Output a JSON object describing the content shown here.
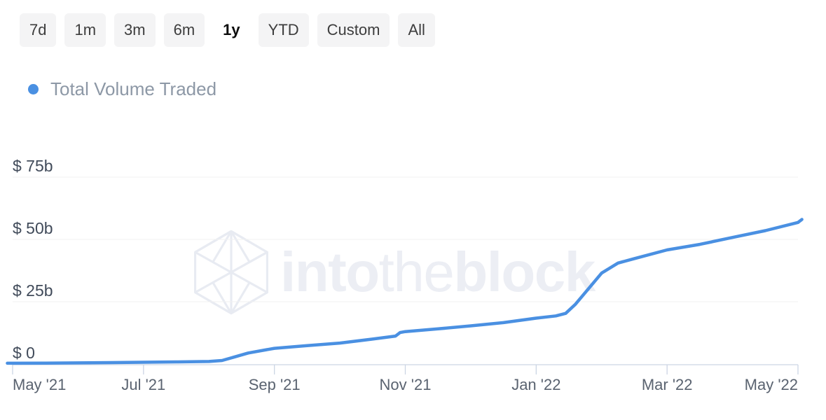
{
  "toolbar": {
    "ranges": [
      {
        "label": "7d",
        "active": false
      },
      {
        "label": "1m",
        "active": false
      },
      {
        "label": "3m",
        "active": false
      },
      {
        "label": "6m",
        "active": false
      },
      {
        "label": "1y",
        "active": true
      },
      {
        "label": "YTD",
        "active": false
      },
      {
        "label": "Custom",
        "active": false
      },
      {
        "label": "All",
        "active": false
      }
    ]
  },
  "legend": {
    "label": "Total Volume Traded",
    "dot_color": "#4a90e2"
  },
  "watermark": {
    "into": "into",
    "the": "the",
    "block": "block"
  },
  "colors": {
    "line": "#4a90e2",
    "gridline": "#f1f1f1",
    "axis": "#ccd5e4"
  },
  "chart_data": {
    "type": "line",
    "title": "Total Volume Traded",
    "unit": "USD billions",
    "selected_range": "1y",
    "legend_position": "top-left",
    "grid": "horizontal-only",
    "ylim": [
      0,
      80
    ],
    "yticks": [
      {
        "label": "$ 75b",
        "value": 75
      },
      {
        "label": "$ 50b",
        "value": 50
      },
      {
        "label": "$ 25b",
        "value": 25
      },
      {
        "label": "$ 0",
        "value": 0
      }
    ],
    "xticks": [
      {
        "label": "May '21",
        "t": 0
      },
      {
        "label": "Jul '21",
        "t": 2
      },
      {
        "label": "Sep '21",
        "t": 4
      },
      {
        "label": "Nov '21",
        "t": 6
      },
      {
        "label": "Jan '22",
        "t": 8
      },
      {
        "label": "Mar '22",
        "t": 10
      },
      {
        "label": "May '22",
        "t": 12
      }
    ],
    "series": [
      {
        "name": "Total Volume Traded",
        "color": "#4a90e2",
        "points": [
          {
            "t": -0.08,
            "date": "2021-04-29",
            "value": 0.3
          },
          {
            "t": 0,
            "date": "2021-05-01",
            "value": 0.3
          },
          {
            "t": 0.5,
            "date": "2021-05-16",
            "value": 0.35
          },
          {
            "t": 1,
            "date": "2021-06-01",
            "value": 0.45
          },
          {
            "t": 1.5,
            "date": "2021-06-16",
            "value": 0.55
          },
          {
            "t": 2,
            "date": "2021-07-01",
            "value": 0.7
          },
          {
            "t": 2.5,
            "date": "2021-07-16",
            "value": 0.85
          },
          {
            "t": 3,
            "date": "2021-08-01",
            "value": 1.0
          },
          {
            "t": 3.2,
            "date": "2021-08-07",
            "value": 1.4
          },
          {
            "t": 3.4,
            "date": "2021-08-13",
            "value": 2.9
          },
          {
            "t": 3.6,
            "date": "2021-08-19",
            "value": 4.4
          },
          {
            "t": 4,
            "date": "2021-09-01",
            "value": 6.3
          },
          {
            "t": 4.5,
            "date": "2021-09-16",
            "value": 7.4
          },
          {
            "t": 5,
            "date": "2021-10-01",
            "value": 8.4
          },
          {
            "t": 5.5,
            "date": "2021-10-16",
            "value": 10.0
          },
          {
            "t": 5.85,
            "date": "2021-10-27",
            "value": 11.2
          },
          {
            "t": 5.92,
            "date": "2021-10-29",
            "value": 12.6
          },
          {
            "t": 6,
            "date": "2021-11-01",
            "value": 13.0
          },
          {
            "t": 6.5,
            "date": "2021-11-16",
            "value": 14.1
          },
          {
            "t": 7,
            "date": "2021-12-01",
            "value": 15.3
          },
          {
            "t": 7.5,
            "date": "2021-12-16",
            "value": 16.6
          },
          {
            "t": 8,
            "date": "2022-01-01",
            "value": 18.4
          },
          {
            "t": 8.3,
            "date": "2022-01-10",
            "value": 19.3
          },
          {
            "t": 8.45,
            "date": "2022-01-14",
            "value": 20.3
          },
          {
            "t": 8.6,
            "date": "2022-01-19",
            "value": 24.0
          },
          {
            "t": 9,
            "date": "2022-02-01",
            "value": 36.5
          },
          {
            "t": 9.25,
            "date": "2022-02-08",
            "value": 40.5
          },
          {
            "t": 9.5,
            "date": "2022-02-15",
            "value": 42.3
          },
          {
            "t": 10,
            "date": "2022-03-01",
            "value": 45.8
          },
          {
            "t": 10.5,
            "date": "2022-03-16",
            "value": 48.0
          },
          {
            "t": 11,
            "date": "2022-04-01",
            "value": 50.8
          },
          {
            "t": 11.5,
            "date": "2022-04-16",
            "value": 53.5
          },
          {
            "t": 12,
            "date": "2022-05-01",
            "value": 56.8
          },
          {
            "t": 12.06,
            "date": "2022-05-03",
            "value": 58.0
          }
        ]
      }
    ]
  }
}
